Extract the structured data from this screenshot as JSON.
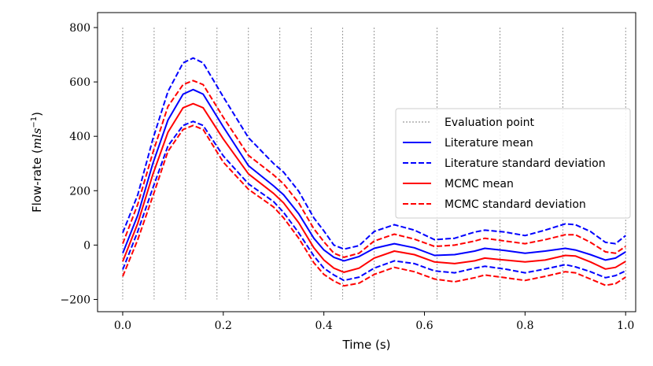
{
  "chart_data": {
    "type": "line",
    "title": "",
    "xlabel": "Time (s)",
    "ylabel": "Flow-rate (",
    "ylabel_units": "mls",
    "ylabel_exp": "−1",
    "ylabel_close": ")",
    "xlim": [
      -0.05,
      1.02
    ],
    "ylim": [
      -245,
      855
    ],
    "grid": false,
    "legend_position": "right",
    "xticks": [
      0.0,
      0.2,
      0.4,
      0.6,
      0.8,
      1.0
    ],
    "xtick_labels": [
      "0.0",
      "0.2",
      "0.4",
      "0.6",
      "0.8",
      "1.0"
    ],
    "yticks": [
      -200,
      0,
      200,
      400,
      600,
      800
    ],
    "ytick_labels": [
      "−200",
      "0",
      "200",
      "400",
      "600",
      "800"
    ],
    "evaluation_points": [
      0.0,
      0.0625,
      0.125,
      0.1875,
      0.25,
      0.3125,
      0.375,
      0.4375,
      0.5,
      0.625,
      0.75,
      0.875,
      1.0
    ],
    "evaluation_line_range": [
      -200,
      800
    ],
    "x": [
      0.0,
      0.03,
      0.06,
      0.09,
      0.12,
      0.14,
      0.16,
      0.2,
      0.25,
      0.3,
      0.32,
      0.35,
      0.38,
      0.4,
      0.42,
      0.44,
      0.47,
      0.5,
      0.54,
      0.58,
      0.62,
      0.66,
      0.7,
      0.72,
      0.76,
      0.8,
      0.84,
      0.88,
      0.9,
      0.93,
      0.96,
      0.98,
      1.0
    ],
    "series": [
      {
        "name": "Literature mean",
        "color": "#0000ff",
        "style": "solid",
        "show_in_legend": true,
        "values": [
          -30,
          110,
          300,
          460,
          555,
          572,
          555,
          435,
          292,
          218,
          185,
          115,
          25,
          -18,
          -45,
          -58,
          -42,
          -12,
          5,
          -10,
          -38,
          -35,
          -22,
          -12,
          -20,
          -30,
          -22,
          -12,
          -18,
          -35,
          -55,
          -48,
          -25
        ]
      },
      {
        "name": "Literature standard deviation",
        "color": "#0000ff",
        "style": "dashed",
        "show_in_legend": true,
        "values": [
          45,
          185,
          390,
          565,
          670,
          688,
          670,
          545,
          395,
          300,
          268,
          198,
          100,
          52,
          0,
          -15,
          -2,
          50,
          75,
          55,
          20,
          25,
          48,
          55,
          48,
          35,
          55,
          78,
          75,
          50,
          10,
          5,
          35
        ]
      },
      {
        "name": "Literature standard deviation lower",
        "color": "#0000ff",
        "style": "dashed",
        "show_in_legend": false,
        "values": [
          -90,
          50,
          210,
          365,
          440,
          455,
          440,
          328,
          225,
          160,
          120,
          45,
          -40,
          -85,
          -110,
          -130,
          -118,
          -85,
          -58,
          -68,
          -95,
          -102,
          -85,
          -78,
          -88,
          -102,
          -88,
          -72,
          -80,
          -98,
          -120,
          -112,
          -95
        ]
      },
      {
        "name": "MCMC mean",
        "color": "#ff0000",
        "style": "solid",
        "show_in_legend": true,
        "values": [
          -60,
          80,
          260,
          415,
          505,
          520,
          505,
          390,
          262,
          190,
          155,
          82,
          -10,
          -55,
          -85,
          -100,
          -85,
          -48,
          -22,
          -35,
          -62,
          -68,
          -58,
          -48,
          -55,
          -62,
          -55,
          -38,
          -40,
          -62,
          -88,
          -82,
          -60
        ]
      },
      {
        "name": "MCMC standard deviation",
        "color": "#ff0000",
        "style": "dashed",
        "show_in_legend": true,
        "values": [
          5,
          150,
          340,
          510,
          590,
          605,
          590,
          470,
          330,
          258,
          225,
          155,
          60,
          12,
          -30,
          -45,
          -30,
          15,
          40,
          22,
          -5,
          0,
          15,
          25,
          15,
          5,
          20,
          38,
          38,
          10,
          -25,
          -30,
          -5
        ]
      },
      {
        "name": "MCMC standard deviation lower",
        "color": "#ff0000",
        "style": "dashed",
        "show_in_legend": false,
        "values": [
          -115,
          20,
          180,
          345,
          425,
          440,
          425,
          305,
          205,
          140,
          100,
          25,
          -65,
          -108,
          -132,
          -150,
          -140,
          -108,
          -82,
          -98,
          -125,
          -135,
          -120,
          -110,
          -120,
          -130,
          -115,
          -98,
          -102,
          -125,
          -148,
          -142,
          -118
        ]
      }
    ],
    "legend": {
      "evaluation": "Evaluation point",
      "lit_mean": "Literature mean",
      "lit_std": "Literature standard deviation",
      "mcmc_mean": "MCMC mean",
      "mcmc_std": "MCMC standard deviation"
    }
  }
}
